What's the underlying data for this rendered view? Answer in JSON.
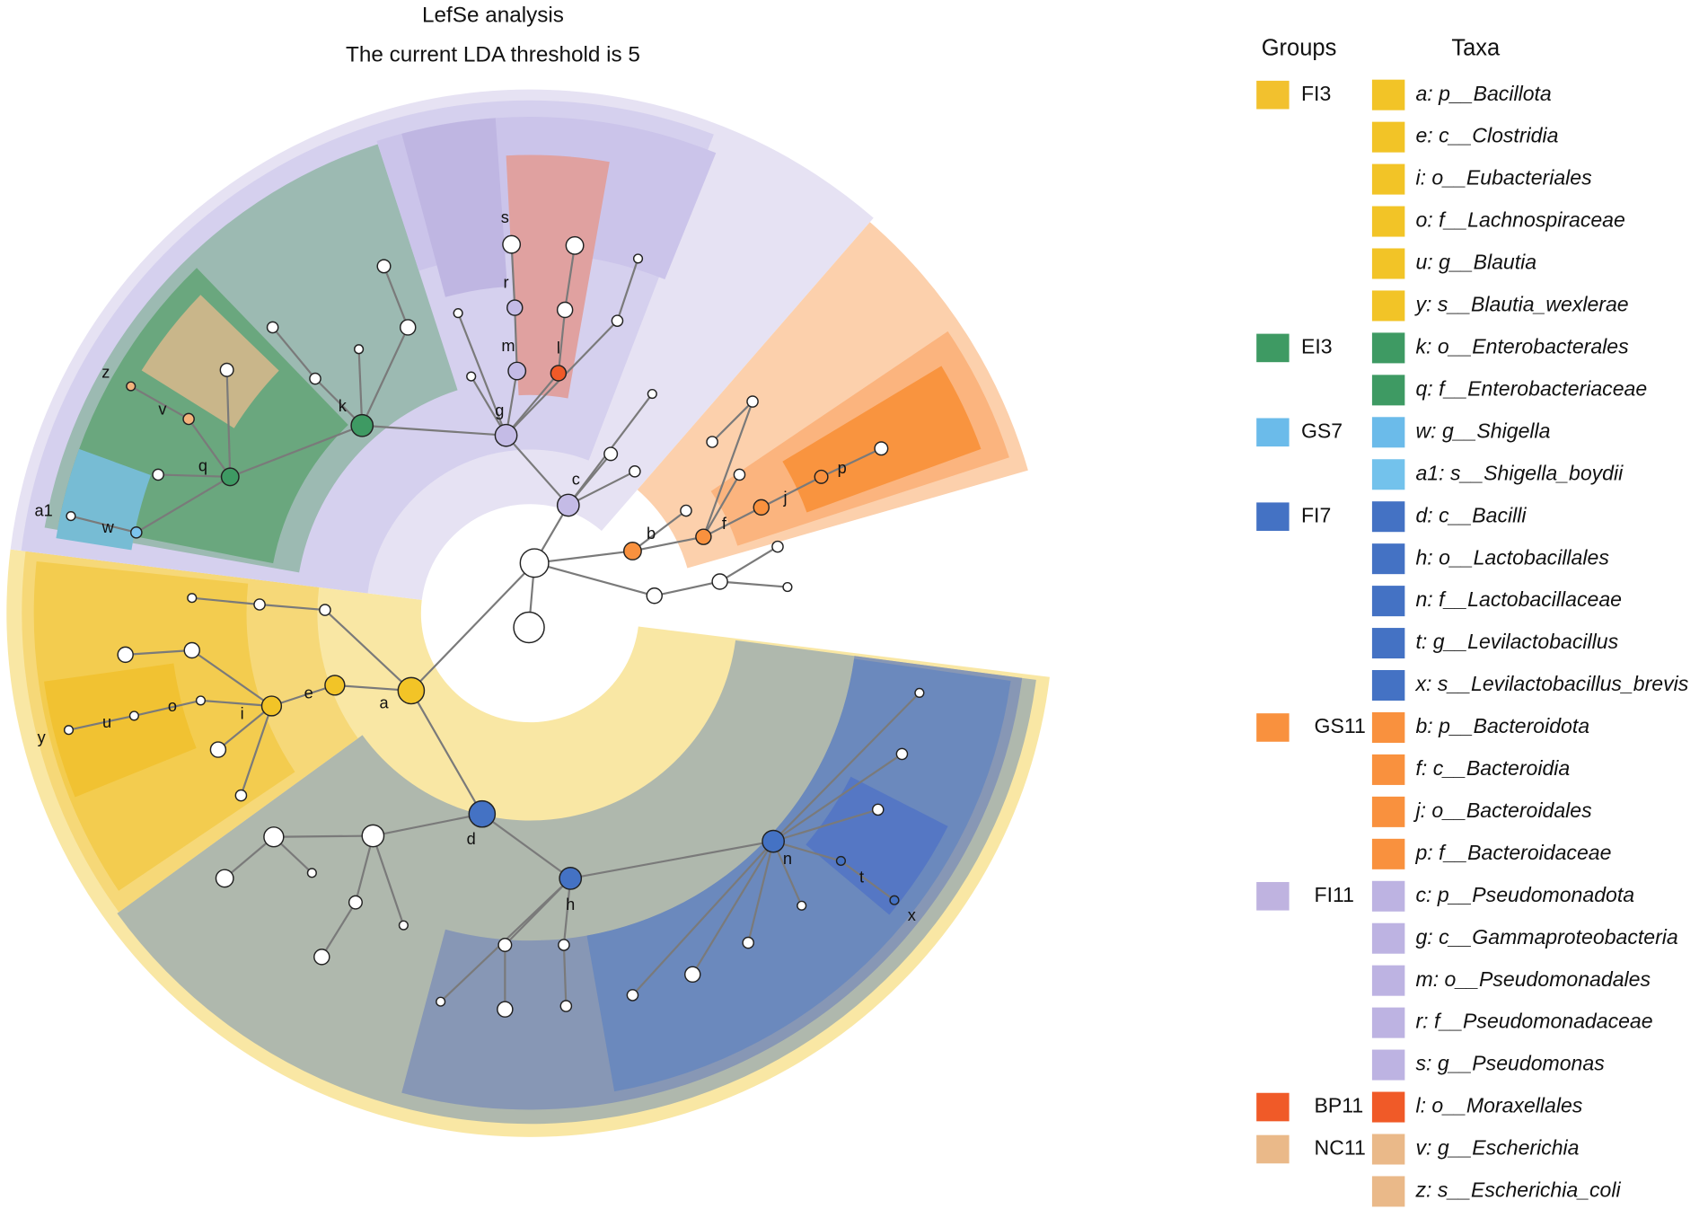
{
  "title": "LefSe analysis",
  "subtitle": "The current LDA threshold is 5",
  "legend": {
    "groups_title": "Groups",
    "taxa_title": "Taxa",
    "groups": [
      {
        "label": "FI3",
        "color": "#f2c12e"
      },
      {
        "label": "EI3",
        "color": "#3e9a63"
      },
      {
        "label": "GS7",
        "color": "#6bbbea"
      },
      {
        "label": "FI7",
        "color": "#4472c4"
      },
      {
        "label": "GS11",
        "color": "#f9913e"
      },
      {
        "label": "FI11",
        "color": "#bfb3e0"
      },
      {
        "label": "BP11",
        "color": "#f05a28"
      },
      {
        "label": "NC11",
        "color": "#eab989"
      }
    ],
    "taxa": [
      {
        "label": "a: p__Bacillota",
        "color": "#f2c427"
      },
      {
        "label": "e: c__Clostridia",
        "color": "#f2c427"
      },
      {
        "label": "i: o__Eubacteriales",
        "color": "#f2c427"
      },
      {
        "label": "o: f__Lachnospiraceae",
        "color": "#f2c427"
      },
      {
        "label": "u: g__Blautia",
        "color": "#f2c427"
      },
      {
        "label": "y: s__Blautia_wexlerae",
        "color": "#f2c427"
      },
      {
        "label": "k: o__Enterobacterales",
        "color": "#3e9a63"
      },
      {
        "label": "q: f__Enterobacteriaceae",
        "color": "#3e9a63"
      },
      {
        "label": "w: g__Shigella",
        "color": "#6bbbea"
      },
      {
        "label": "a1: s__Shigella_boydii",
        "color": "#73c2ec"
      },
      {
        "label": "d: c__Bacilli",
        "color": "#4472c4"
      },
      {
        "label": "h: o__Lactobacillales",
        "color": "#4472c4"
      },
      {
        "label": "n: f__Lactobacillaceae",
        "color": "#4472c4"
      },
      {
        "label": "t: g__Levilactobacillus",
        "color": "#4472c4"
      },
      {
        "label": "x: s__Levilactobacillus_brevis",
        "color": "#4472c4"
      },
      {
        "label": "b: p__Bacteroidota",
        "color": "#f9913e"
      },
      {
        "label": "f: c__Bacteroidia",
        "color": "#f9913e"
      },
      {
        "label": "j: o__Bacteroidales",
        "color": "#f9913e"
      },
      {
        "label": "p: f__Bacteroidaceae",
        "color": "#f9913e"
      },
      {
        "label": "c: p__Pseudomonadota",
        "color": "#bdb3e2"
      },
      {
        "label": "g: c__Gammaproteobacteria",
        "color": "#bdb3e2"
      },
      {
        "label": "m: o__Pseudomonadales",
        "color": "#bdb3e2"
      },
      {
        "label": "r: f__Pseudomonadaceae",
        "color": "#bdb3e2"
      },
      {
        "label": "s: g__Pseudomonas",
        "color": "#bdb3e2"
      },
      {
        "label": "l: o__Moraxellales",
        "color": "#f05a28"
      },
      {
        "label": "v: g__Escherichia",
        "color": "#eab989"
      },
      {
        "label": "z: s__Escherichia_coli",
        "color": "#eab989"
      }
    ]
  },
  "node_labels": [
    "a",
    "e",
    "i",
    "o",
    "u",
    "y",
    "d",
    "h",
    "n",
    "t",
    "x",
    "b",
    "f",
    "j",
    "p",
    "c",
    "g",
    "m",
    "r",
    "s",
    "l",
    "k",
    "q",
    "v",
    "z",
    "w",
    "a1"
  ]
}
